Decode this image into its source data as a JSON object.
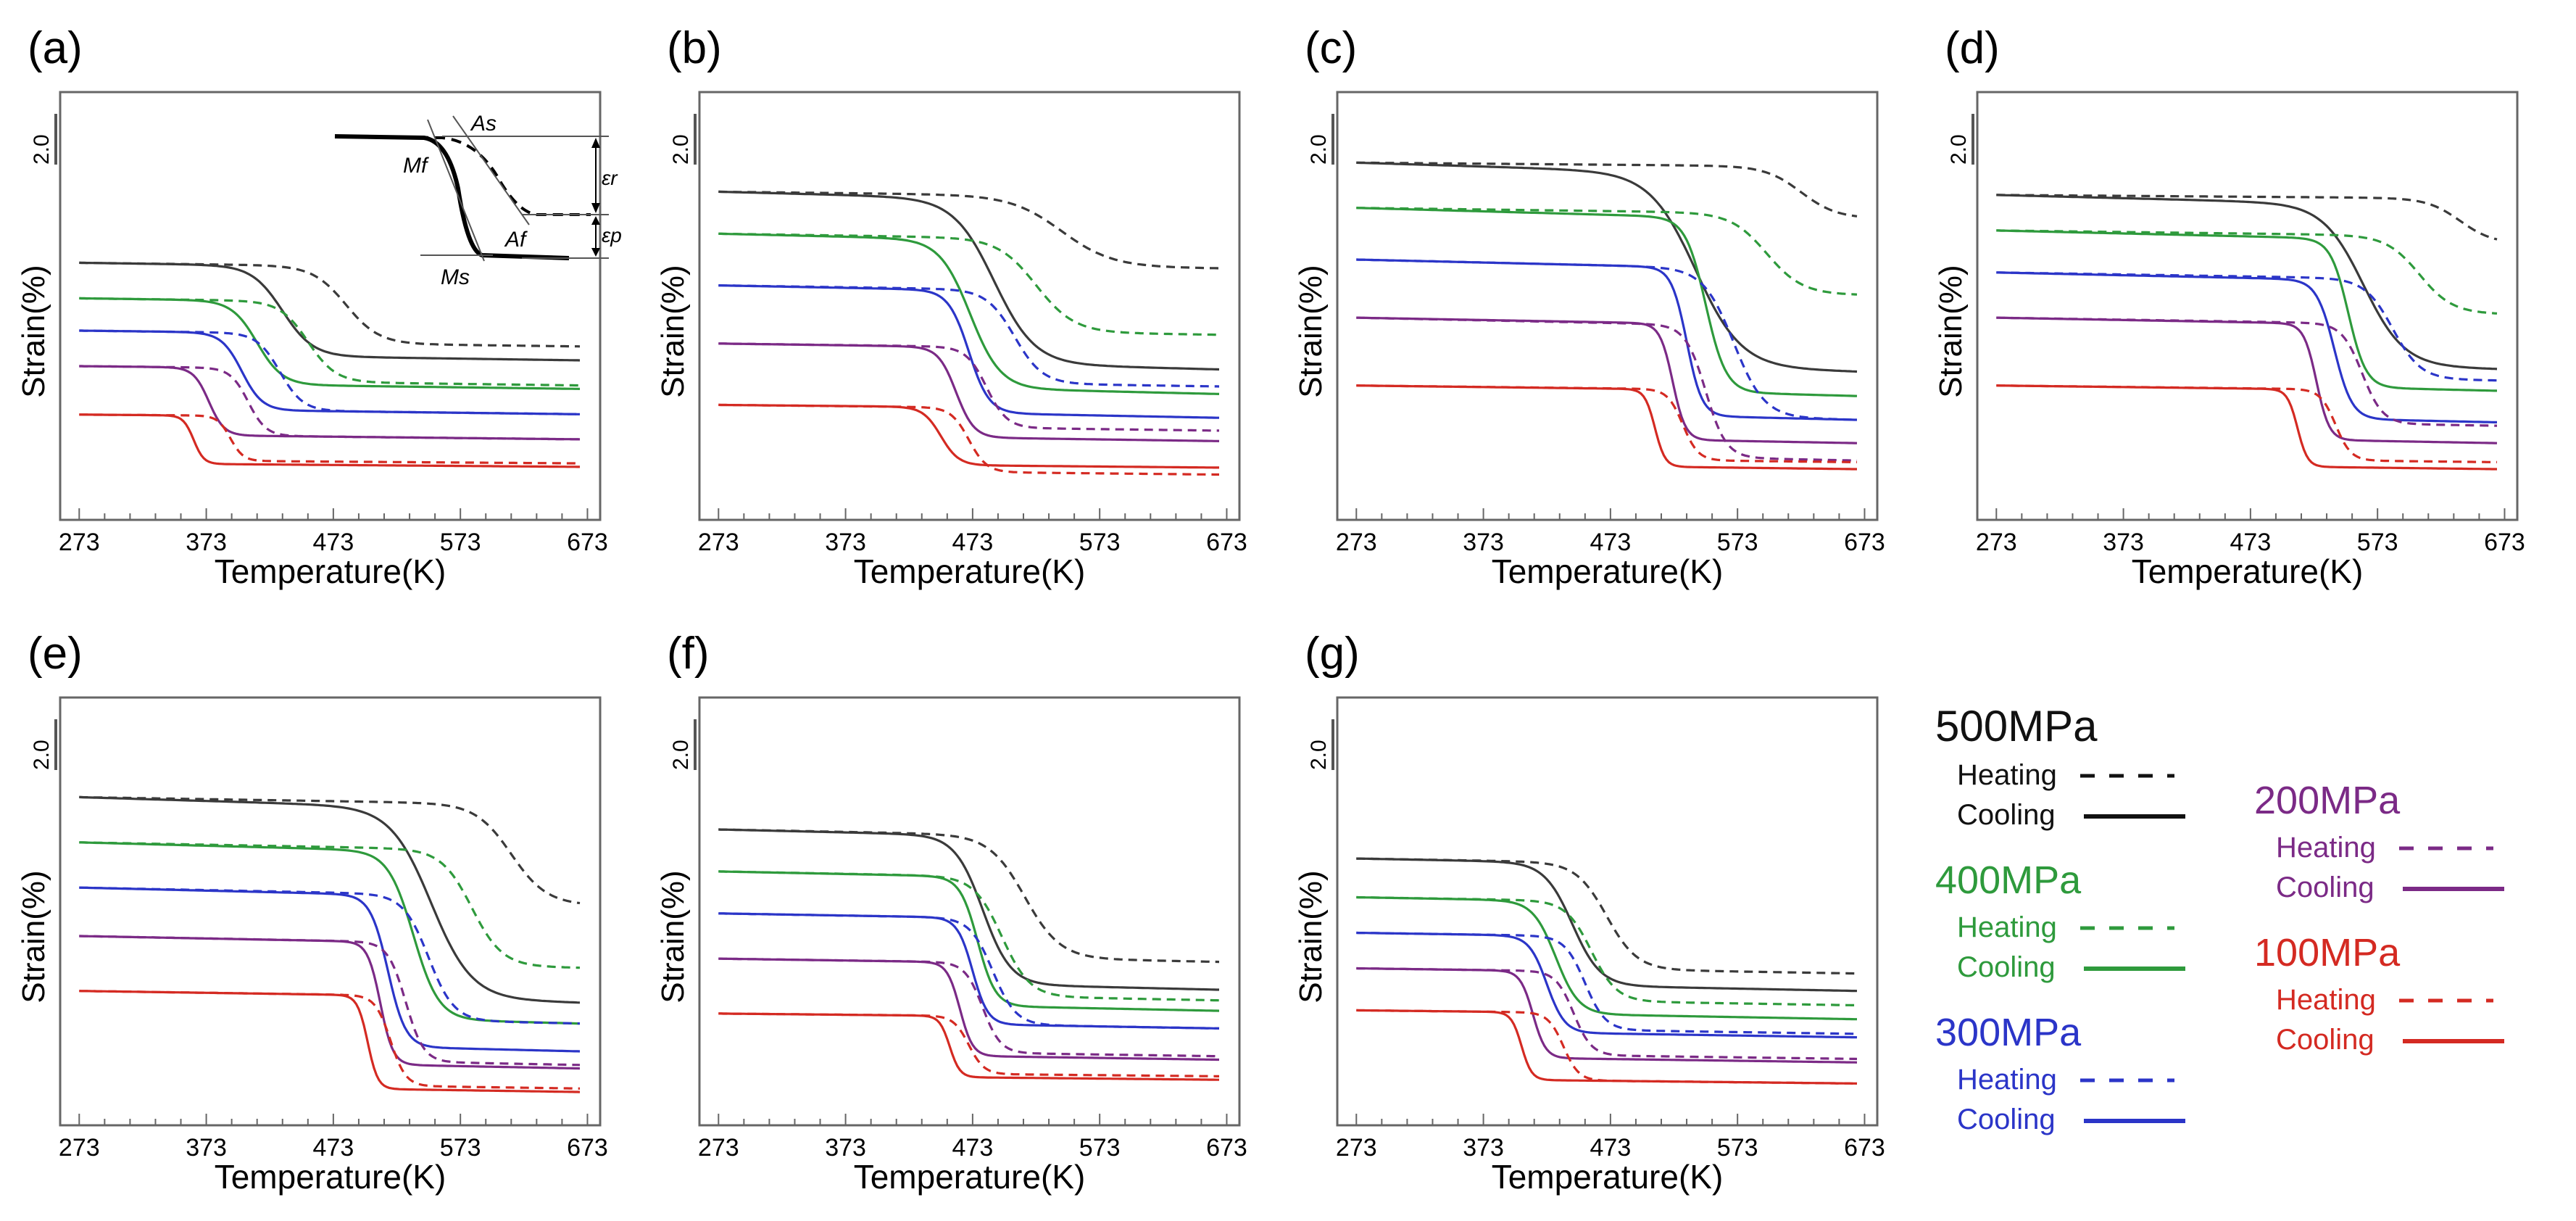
{
  "colors": {
    "s500": "#3a3a3a",
    "s400": "#2e9a3c",
    "s300": "#2b35c8",
    "s200": "#7b2a86",
    "s100": "#d42a22",
    "axis": "#666666",
    "legend500": "#111111"
  },
  "common": {
    "xlabel": "Temperature(K)",
    "ylabel": "Strain(%)",
    "scale_bar_label": "2.0",
    "xticks": [
      273,
      373,
      473,
      573,
      673
    ],
    "xlim": [
      258,
      683
    ]
  },
  "inset": {
    "labels": {
      "as": "As",
      "mf": "Mf",
      "af": "Af",
      "ms": "Ms",
      "er": "εr",
      "ep": "εp"
    }
  },
  "legend": {
    "groups": [
      {
        "key": "s500",
        "title": "500MPa",
        "heating": "Heating",
        "cooling": "Cooling"
      },
      {
        "key": "s400",
        "title": "400MPa",
        "heating": "Heating",
        "cooling": "Cooling"
      },
      {
        "key": "s300",
        "title": "300MPa",
        "heating": "Heating",
        "cooling": "Cooling"
      },
      {
        "key": "s200",
        "title": "200MPa",
        "heating": "Heating",
        "cooling": "Cooling"
      },
      {
        "key": "s100",
        "title": "100MPa",
        "heating": "Heating",
        "cooling": "Cooling"
      }
    ]
  },
  "chart_data": [
    {
      "type": "line",
      "panel_label": "(a)",
      "ylim": [
        0,
        10
      ],
      "series": [
        {
          "stress": "500MPa",
          "cooling": {
            "hi": 6.9,
            "lo": 4.1,
            "t": 433,
            "w": 12
          },
          "heating": {
            "hi": 6.9,
            "lo": 4.5,
            "t": 483,
            "w": 13
          }
        },
        {
          "stress": "400MPa",
          "cooling": {
            "hi": 5.8,
            "lo": 3.2,
            "t": 413,
            "w": 10
          },
          "heating": {
            "hi": 5.8,
            "lo": 3.3,
            "t": 453,
            "w": 11
          }
        },
        {
          "stress": "300MPa",
          "cooling": {
            "hi": 4.8,
            "lo": 2.4,
            "t": 401,
            "w": 8
          },
          "heating": {
            "hi": 4.8,
            "lo": 2.4,
            "t": 431,
            "w": 9
          }
        },
        {
          "stress": "200MPa",
          "cooling": {
            "hi": 3.7,
            "lo": 1.6,
            "t": 375,
            "w": 6
          },
          "heating": {
            "hi": 3.7,
            "lo": 1.6,
            "t": 406,
            "w": 7
          }
        },
        {
          "stress": "100MPa",
          "cooling": {
            "hi": 2.2,
            "lo": 0.7,
            "t": 363,
            "w": 4
          },
          "heating": {
            "hi": 2.2,
            "lo": 0.8,
            "t": 392,
            "w": 5
          }
        }
      ]
    },
    {
      "type": "line",
      "panel_label": "(b)",
      "ylim": [
        0,
        10
      ],
      "series": [
        {
          "stress": "500MPa",
          "cooling": {
            "hi": 9.1,
            "lo": 4.0,
            "t": 490,
            "w": 16
          },
          "heating": {
            "hi": 9.1,
            "lo": 6.9,
            "t": 543,
            "w": 20
          }
        },
        {
          "stress": "400MPa",
          "cooling": {
            "hi": 7.8,
            "lo": 3.2,
            "t": 471,
            "w": 12
          },
          "heating": {
            "hi": 7.8,
            "lo": 4.9,
            "t": 523,
            "w": 15
          }
        },
        {
          "stress": "300MPa",
          "cooling": {
            "hi": 6.2,
            "lo": 2.4,
            "t": 470,
            "w": 8
          },
          "heating": {
            "hi": 6.2,
            "lo": 3.3,
            "t": 506,
            "w": 11
          }
        },
        {
          "stress": "200MPa",
          "cooling": {
            "hi": 4.4,
            "lo": 1.6,
            "t": 460,
            "w": 7
          },
          "heating": {
            "hi": 4.4,
            "lo": 1.9,
            "t": 484,
            "w": 8
          }
        },
        {
          "stress": "100MPa",
          "cooling": {
            "hi": 2.5,
            "lo": 0.7,
            "t": 448,
            "w": 7
          },
          "heating": {
            "hi": 2.5,
            "lo": 0.5,
            "t": 470,
            "w": 7
          }
        }
      ]
    },
    {
      "type": "line",
      "panel_label": "(c)",
      "ylim": [
        0,
        10
      ],
      "series": [
        {
          "stress": "500MPa",
          "cooling": {
            "hi": 10.0,
            "lo": 4.0,
            "t": 540,
            "w": 18
          },
          "heating": {
            "hi": 10.0,
            "lo": 8.4,
            "t": 623,
            "w": 14
          }
        },
        {
          "stress": "400MPa",
          "cooling": {
            "hi": 8.6,
            "lo": 3.2,
            "t": 548,
            "w": 8
          },
          "heating": {
            "hi": 8.6,
            "lo": 6.1,
            "t": 596,
            "w": 14
          }
        },
        {
          "stress": "300MPa",
          "cooling": {
            "hi": 7.0,
            "lo": 2.4,
            "t": 533,
            "w": 6
          },
          "heating": {
            "hi": 7.0,
            "lo": 2.4,
            "t": 570,
            "w": 12
          }
        },
        {
          "stress": "200MPa",
          "cooling": {
            "hi": 5.2,
            "lo": 1.6,
            "t": 522,
            "w": 5
          },
          "heating": {
            "hi": 5.2,
            "lo": 1.1,
            "t": 548,
            "w": 8
          }
        },
        {
          "stress": "100MPa",
          "cooling": {
            "hi": 3.1,
            "lo": 0.7,
            "t": 508,
            "w": 4
          },
          "heating": {
            "hi": 3.1,
            "lo": 0.9,
            "t": 530,
            "w": 6
          }
        }
      ]
    },
    {
      "type": "line",
      "panel_label": "(d)",
      "ylim": [
        0,
        10
      ],
      "series": [
        {
          "stress": "500MPa",
          "cooling": {
            "hi": 9.0,
            "lo": 4.0,
            "t": 562,
            "w": 16
          },
          "heating": {
            "hi": 9.0,
            "lo": 7.6,
            "t": 638,
            "w": 13
          }
        },
        {
          "stress": "400MPa",
          "cooling": {
            "hi": 7.9,
            "lo": 3.3,
            "t": 550,
            "w": 7
          },
          "heating": {
            "hi": 7.9,
            "lo": 5.5,
            "t": 606,
            "w": 13
          }
        },
        {
          "stress": "300MPa",
          "cooling": {
            "hi": 6.6,
            "lo": 2.3,
            "t": 539,
            "w": 7
          },
          "heating": {
            "hi": 6.6,
            "lo": 3.5,
            "t": 585,
            "w": 11
          }
        },
        {
          "stress": "200MPa",
          "cooling": {
            "hi": 5.2,
            "lo": 1.6,
            "t": 525,
            "w": 5
          },
          "heating": {
            "hi": 5.2,
            "lo": 2.1,
            "t": 561,
            "w": 8
          }
        },
        {
          "stress": "100MPa",
          "cooling": {
            "hi": 3.1,
            "lo": 0.7,
            "t": 510,
            "w": 4
          },
          "heating": {
            "hi": 3.1,
            "lo": 0.9,
            "t": 540,
            "w": 6
          }
        }
      ]
    },
    {
      "type": "line",
      "panel_label": "(e)",
      "ylim": [
        0,
        10
      ],
      "series": [
        {
          "stress": "500MPa",
          "cooling": {
            "hi": 9.1,
            "lo": 3.2,
            "t": 550,
            "w": 16
          },
          "heating": {
            "hi": 9.1,
            "lo": 6.0,
            "t": 613,
            "w": 14
          }
        },
        {
          "stress": "400MPa",
          "cooling": {
            "hi": 7.7,
            "lo": 2.5,
            "t": 536,
            "w": 10
          },
          "heating": {
            "hi": 7.7,
            "lo": 4.1,
            "t": 582,
            "w": 12
          }
        },
        {
          "stress": "300MPa",
          "cooling": {
            "hi": 6.3,
            "lo": 1.6,
            "t": 516,
            "w": 7
          },
          "heating": {
            "hi": 6.3,
            "lo": 2.4,
            "t": 548,
            "w": 10
          }
        },
        {
          "stress": "200MPa",
          "cooling": {
            "hi": 4.8,
            "lo": 1.0,
            "t": 510,
            "w": 5
          },
          "heating": {
            "hi": 4.8,
            "lo": 1.1,
            "t": 530,
            "w": 7
          }
        },
        {
          "stress": "100MPa",
          "cooling": {
            "hi": 3.1,
            "lo": 0.2,
            "t": 500,
            "w": 4
          },
          "heating": {
            "hi": 3.1,
            "lo": 0.3,
            "t": 518,
            "w": 6
          }
        }
      ]
    },
    {
      "type": "line",
      "panel_label": "(f)",
      "ylim": [
        0,
        10
      ],
      "series": [
        {
          "stress": "500MPa",
          "cooling": {
            "hi": 8.1,
            "lo": 3.5,
            "t": 481,
            "w": 11
          },
          "heating": {
            "hi": 8.1,
            "lo": 4.3,
            "t": 514,
            "w": 14
          }
        },
        {
          "stress": "400MPa",
          "cooling": {
            "hi": 6.8,
            "lo": 2.8,
            "t": 477,
            "w": 7
          },
          "heating": {
            "hi": 6.8,
            "lo": 3.1,
            "t": 496,
            "w": 11
          }
        },
        {
          "stress": "300MPa",
          "cooling": {
            "hi": 5.5,
            "lo": 2.2,
            "t": 473,
            "w": 6
          },
          "heating": {
            "hi": 5.5,
            "lo": 2.2,
            "t": 489,
            "w": 9
          }
        },
        {
          "stress": "200MPa",
          "cooling": {
            "hi": 4.1,
            "lo": 1.2,
            "t": 463,
            "w": 5
          },
          "heating": {
            "hi": 4.1,
            "lo": 1.3,
            "t": 481,
            "w": 7
          }
        },
        {
          "stress": "100MPa",
          "cooling": {
            "hi": 2.4,
            "lo": 0.5,
            "t": 455,
            "w": 4
          },
          "heating": {
            "hi": 2.4,
            "lo": 0.6,
            "t": 470,
            "w": 6
          }
        }
      ]
    },
    {
      "type": "line",
      "panel_label": "(g)",
      "ylim": [
        0,
        10
      ],
      "series": [
        {
          "stress": "500MPa",
          "cooling": {
            "hi": 7.2,
            "lo": 3.4,
            "t": 443,
            "w": 11
          },
          "heating": {
            "hi": 7.2,
            "lo": 3.9,
            "t": 470,
            "w": 12
          }
        },
        {
          "stress": "400MPa",
          "cooling": {
            "hi": 6.0,
            "lo": 2.5,
            "t": 430,
            "w": 9
          },
          "heating": {
            "hi": 6.0,
            "lo": 2.9,
            "t": 458,
            "w": 10
          }
        },
        {
          "stress": "300MPa",
          "cooling": {
            "hi": 4.9,
            "lo": 1.9,
            "t": 423,
            "w": 7
          },
          "heating": {
            "hi": 4.9,
            "lo": 2.0,
            "t": 453,
            "w": 8
          }
        },
        {
          "stress": "200MPa",
          "cooling": {
            "hi": 3.8,
            "lo": 1.1,
            "t": 412,
            "w": 5
          },
          "heating": {
            "hi": 3.8,
            "lo": 1.2,
            "t": 444,
            "w": 7
          }
        },
        {
          "stress": "100MPa",
          "cooling": {
            "hi": 2.5,
            "lo": 0.4,
            "t": 403,
            "w": 4
          },
          "heating": {
            "hi": 2.5,
            "lo": 0.4,
            "t": 436,
            "w": 6
          }
        }
      ]
    }
  ]
}
